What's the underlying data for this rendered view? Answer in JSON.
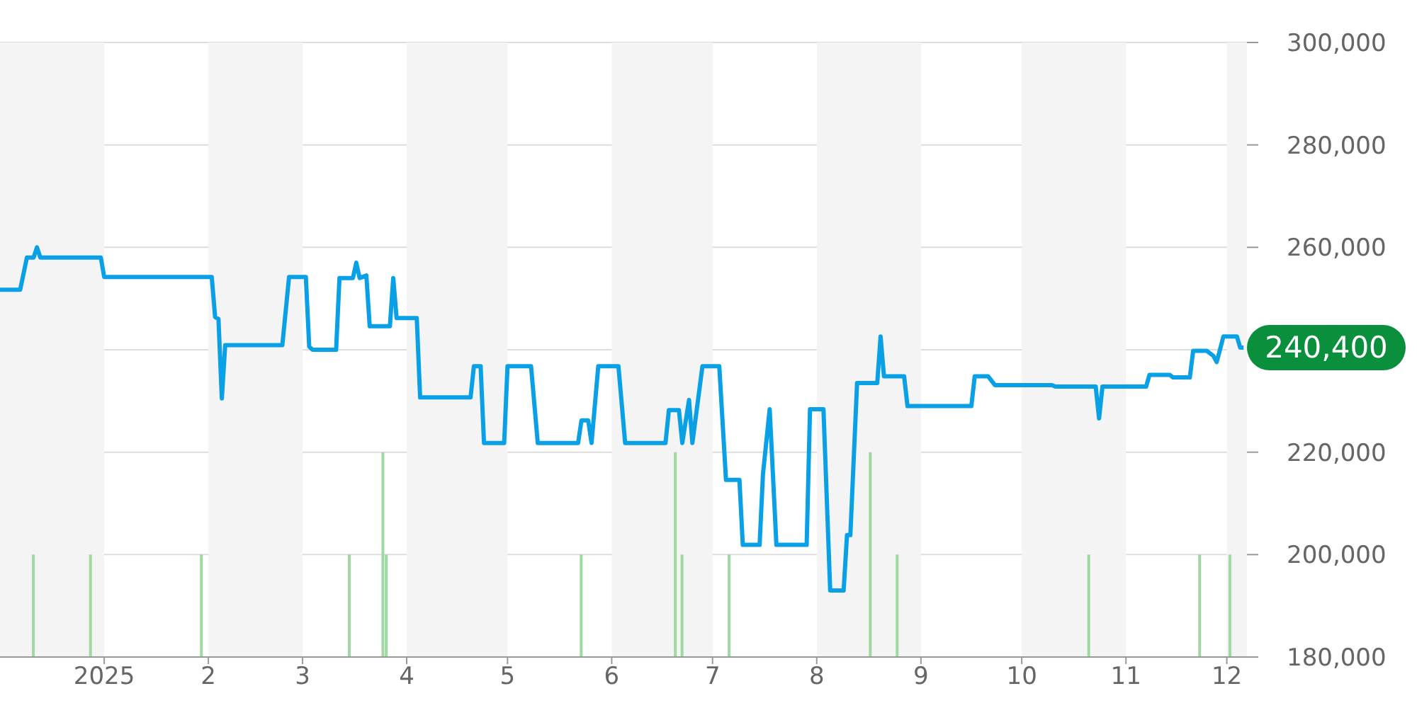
{
  "chart_data": {
    "type": "line",
    "xlim": [
      "2024-12-01",
      "2025-12-07"
    ],
    "xticks": [
      {
        "value": "2025-01-01",
        "label": "2025"
      },
      {
        "value": "2025-02-01",
        "label": "2"
      },
      {
        "value": "2025-03-01",
        "label": "3"
      },
      {
        "value": "2025-04-01",
        "label": "4"
      },
      {
        "value": "2025-05-01",
        "label": "5"
      },
      {
        "value": "2025-06-01",
        "label": "6"
      },
      {
        "value": "2025-07-01",
        "label": "7"
      },
      {
        "value": "2025-08-01",
        "label": "8"
      },
      {
        "value": "2025-09-01",
        "label": "9"
      },
      {
        "value": "2025-10-01",
        "label": "10"
      },
      {
        "value": "2025-11-01",
        "label": "11"
      },
      {
        "value": "2025-12-01",
        "label": "12"
      }
    ],
    "ylim": [
      180000,
      300000
    ],
    "yticks": [
      {
        "value": 180000,
        "label": "180,000"
      },
      {
        "value": 200000,
        "label": "200,000"
      },
      {
        "value": 220000,
        "label": "220,000"
      },
      {
        "value": 240000,
        "label": null
      },
      {
        "value": 260000,
        "label": "260,000"
      },
      {
        "value": 280000,
        "label": "280,000"
      },
      {
        "value": 300000,
        "label": "300,000"
      }
    ],
    "grid": "y",
    "marker": "none",
    "line_style": "solid",
    "bands": [
      {
        "axis": "x",
        "from": "2024-12-01",
        "to": "2025-01-01",
        "color": "#f4f4f4"
      },
      {
        "axis": "x",
        "from": "2025-02-01",
        "to": "2025-03-01",
        "color": "#f4f4f4"
      },
      {
        "axis": "x",
        "from": "2025-04-01",
        "to": "2025-05-01",
        "color": "#f4f4f4"
      },
      {
        "axis": "x",
        "from": "2025-06-01",
        "to": "2025-07-01",
        "color": "#f4f4f4"
      },
      {
        "axis": "x",
        "from": "2025-08-01",
        "to": "2025-09-01",
        "color": "#f4f4f4"
      },
      {
        "axis": "x",
        "from": "2025-10-01",
        "to": "2025-11-01",
        "color": "#f4f4f4"
      },
      {
        "axis": "x",
        "from": "2025-12-01",
        "to": "2025-12-07",
        "color": "#f4f4f4"
      }
    ],
    "annotations": [
      {
        "text": "240,400",
        "x": "2025-12-06",
        "y": 240400
      }
    ],
    "series": [
      {
        "type": "bar",
        "color": "#9fd8a0",
        "x": [
          "2024-12-11",
          "2024-12-28",
          "2025-01-30",
          "2025-03-15",
          "2025-03-25",
          "2025-03-26",
          "2025-05-23",
          "2025-06-20",
          "2025-06-22",
          "2025-07-06",
          "2025-08-17",
          "2025-08-25",
          "2025-10-21",
          "2025-11-23",
          "2025-12-02"
        ],
        "values": [
          200000,
          200000,
          200000,
          200000,
          220000,
          200000,
          200000,
          220000,
          200000,
          200000,
          220000,
          200000,
          200000,
          200000,
          200000
        ]
      },
      {
        "color": "#0aa0e6",
        "x": [
          "2024-12-01",
          "2024-12-07",
          "2024-12-09",
          "2024-12-11",
          "2024-12-12",
          "2024-12-13",
          "2024-12-31",
          "2025-01-01",
          "2025-02-02",
          "2025-02-03",
          "2025-02-04",
          "2025-02-05",
          "2025-02-06",
          "2025-02-23",
          "2025-02-25",
          "2025-03-02",
          "2025-03-03",
          "2025-03-04",
          "2025-03-11",
          "2025-03-12",
          "2025-03-16",
          "2025-03-17",
          "2025-03-18",
          "2025-03-20",
          "2025-03-21",
          "2025-03-27",
          "2025-03-28",
          "2025-03-29",
          "2025-04-04",
          "2025-04-05",
          "2025-04-20",
          "2025-04-21",
          "2025-04-23",
          "2025-04-24",
          "2025-04-30",
          "2025-05-01",
          "2025-05-08",
          "2025-05-10",
          "2025-05-22",
          "2025-05-23",
          "2025-05-25",
          "2025-05-26",
          "2025-05-28",
          "2025-06-03",
          "2025-06-05",
          "2025-06-17",
          "2025-06-18",
          "2025-06-21",
          "2025-06-22",
          "2025-06-24",
          "2025-06-25",
          "2025-06-28",
          "2025-07-03",
          "2025-07-05",
          "2025-07-09",
          "2025-07-10",
          "2025-07-15",
          "2025-07-16",
          "2025-07-18",
          "2025-07-20",
          "2025-07-29",
          "2025-07-30",
          "2025-08-03",
          "2025-08-05",
          "2025-08-09",
          "2025-08-10",
          "2025-08-11",
          "2025-08-13",
          "2025-08-19",
          "2025-08-20",
          "2025-08-21",
          "2025-08-27",
          "2025-08-28",
          "2025-09-16",
          "2025-09-17",
          "2025-09-21",
          "2025-09-23",
          "2025-10-10",
          "2025-10-11",
          "2025-10-23",
          "2025-10-24",
          "2025-10-25",
          "2025-11-07",
          "2025-11-08",
          "2025-11-14",
          "2025-11-15",
          "2025-11-20",
          "2025-11-21",
          "2025-11-25",
          "2025-11-27",
          "2025-11-28",
          "2025-11-30",
          "2025-12-04",
          "2025-12-05",
          "2025-12-06"
        ],
        "values": [
          251700,
          251700,
          258000,
          258000,
          260000,
          258000,
          258000,
          254200,
          254200,
          246400,
          246000,
          230500,
          240900,
          240900,
          254200,
          254200,
          240600,
          240000,
          240000,
          254000,
          254000,
          257000,
          254000,
          254500,
          244600,
          244600,
          254000,
          246200,
          246200,
          230700,
          230700,
          236800,
          236800,
          221800,
          221800,
          236800,
          236800,
          221800,
          221800,
          226200,
          226200,
          221800,
          236800,
          236800,
          221800,
          221800,
          228200,
          228200,
          221800,
          230200,
          221800,
          236800,
          236800,
          214600,
          214600,
          201900,
          201900,
          215700,
          228400,
          201900,
          201900,
          228400,
          228400,
          193000,
          193000,
          203800,
          203800,
          233500,
          233500,
          242600,
          234800,
          234800,
          229000,
          229000,
          234800,
          234800,
          233100,
          233100,
          232800,
          232800,
          226600,
          232800,
          232800,
          235100,
          235100,
          234600,
          234600,
          239800,
          239800,
          238800,
          237600,
          242600,
          242600,
          240400,
          240400
        ]
      }
    ]
  }
}
